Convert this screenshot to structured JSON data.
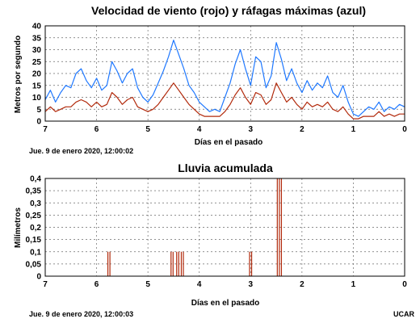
{
  "colors": {
    "wind": "#b22a0c",
    "gust": "#1f78ff",
    "rain": "#b22a0c",
    "grid": "#6b6b6b",
    "frame": "#000000"
  },
  "footer": {
    "credit": "UCAR"
  },
  "chart_data": [
    {
      "type": "line",
      "title": "Velocidad de viento (rojo) y ráfagas máximas (azul)",
      "xlabel": "Días en el pasado",
      "ylabel": "Metros por segundo",
      "xlim": [
        7,
        0
      ],
      "ylim": [
        0,
        40
      ],
      "x_ticks": [
        "7",
        "6",
        "5",
        "4",
        "3",
        "2",
        "1",
        "0"
      ],
      "y_ticks": [
        "0",
        "5",
        "10",
        "15",
        "20",
        "25",
        "30",
        "35",
        "40"
      ],
      "grid": true,
      "timestamp": "Jue. 9 de enero 2020, 12:00:02",
      "x": [
        7.0,
        6.9,
        6.8,
        6.7,
        6.6,
        6.5,
        6.4,
        6.3,
        6.2,
        6.1,
        6.0,
        5.9,
        5.8,
        5.7,
        5.6,
        5.5,
        5.4,
        5.3,
        5.2,
        5.1,
        5.0,
        4.9,
        4.8,
        4.7,
        4.6,
        4.5,
        4.4,
        4.3,
        4.2,
        4.1,
        4.0,
        3.9,
        3.8,
        3.7,
        3.6,
        3.5,
        3.4,
        3.3,
        3.2,
        3.1,
        3.0,
        2.9,
        2.8,
        2.7,
        2.6,
        2.5,
        2.4,
        2.3,
        2.2,
        2.1,
        2.0,
        1.9,
        1.8,
        1.7,
        1.6,
        1.5,
        1.4,
        1.3,
        1.2,
        1.1,
        1.0,
        0.9,
        0.8,
        0.7,
        0.6,
        0.5,
        0.4,
        0.3,
        0.2,
        0.1,
        0.0
      ],
      "series": [
        {
          "color": "gust",
          "values": [
            9,
            13,
            8,
            12,
            15,
            14,
            20,
            22,
            17,
            14,
            18,
            13,
            15,
            25,
            21,
            16,
            20,
            22,
            14,
            10,
            8,
            11,
            16,
            21,
            27,
            34,
            28,
            22,
            15,
            12,
            8,
            6,
            4,
            5,
            4,
            10,
            16,
            24,
            30,
            22,
            15,
            27,
            25,
            14,
            19,
            33,
            26,
            17,
            22,
            16,
            12,
            17,
            13,
            16,
            14,
            19,
            12,
            10,
            15,
            8,
            3,
            2,
            4,
            6,
            5,
            8,
            4,
            6,
            5,
            7,
            6
          ]
        },
        {
          "color": "wind",
          "values": [
            4,
            6,
            4,
            5,
            6,
            6,
            8,
            9,
            8,
            6,
            8,
            6,
            7,
            12,
            10,
            7,
            9,
            10,
            6,
            5,
            4,
            5,
            7,
            10,
            13,
            16,
            13,
            10,
            7,
            5,
            3,
            2,
            2,
            2,
            2,
            4,
            7,
            11,
            14,
            10,
            7,
            12,
            11,
            7,
            9,
            16,
            12,
            8,
            10,
            7,
            5,
            8,
            6,
            7,
            6,
            8,
            5,
            4,
            6,
            3,
            1,
            1,
            2,
            2,
            2,
            4,
            2,
            3,
            2,
            3,
            3
          ]
        }
      ]
    },
    {
      "type": "bar",
      "title": "Lluvia acumulada",
      "xlabel": "Días en el pasado",
      "ylabel": "Milímetros",
      "xlim": [
        7,
        0
      ],
      "ylim": [
        0,
        0.4
      ],
      "x_ticks": [
        "7",
        "6",
        "5",
        "4",
        "3",
        "2",
        "1",
        "0"
      ],
      "y_ticks": [
        "0",
        "0,05",
        "0,1",
        "0,15",
        "0,2",
        "0,25",
        "0,3",
        "0,35",
        "0,4"
      ],
      "grid": true,
      "timestamp": "Jue. 9 de enero 2020,  12:00:03",
      "events": [
        {
          "x": 5.78,
          "value": 0.1
        },
        {
          "x": 5.74,
          "value": 0.1
        },
        {
          "x": 4.55,
          "value": 0.1
        },
        {
          "x": 4.51,
          "value": 0.1
        },
        {
          "x": 4.44,
          "value": 0.1
        },
        {
          "x": 4.4,
          "value": 0.1
        },
        {
          "x": 4.35,
          "value": 0.1
        },
        {
          "x": 4.31,
          "value": 0.1
        },
        {
          "x": 3.02,
          "value": 0.1
        },
        {
          "x": 2.98,
          "value": 0.1
        },
        {
          "x": 2.48,
          "value": 0.4
        },
        {
          "x": 2.44,
          "value": 0.4
        },
        {
          "x": 2.4,
          "value": 0.4
        }
      ]
    }
  ]
}
